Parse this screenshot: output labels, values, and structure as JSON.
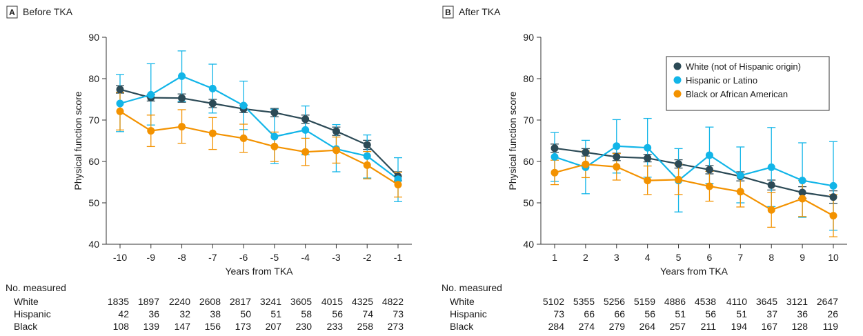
{
  "colors": {
    "White": "#2c4a56",
    "Hispanic": "#12b5e8",
    "Black": "#f39200",
    "axis": "#333333"
  },
  "chart_data": [
    {
      "panel_letter": "A",
      "panel_title": "Before TKA",
      "type": "line",
      "xlabel": "Years from TKA",
      "ylabel": "Physical function score",
      "x": [
        -10,
        -9,
        -8,
        -7,
        -6,
        -5,
        -4,
        -3,
        -2,
        -1
      ],
      "x_tick_labels": [
        "-10",
        "-9",
        "-8",
        "-7",
        "-6",
        "-5",
        "-4",
        "-3",
        "-2",
        "-1"
      ],
      "ylim": [
        40,
        90
      ],
      "y_ticks": [
        40,
        50,
        60,
        70,
        80,
        90
      ],
      "series": [
        {
          "key": "White",
          "values": [
            77.4,
            75.4,
            75.3,
            74.0,
            72.7,
            71.8,
            70.2,
            67.3,
            64.0,
            56.4
          ],
          "lower": [
            76.5,
            74.6,
            74.3,
            73.0,
            71.8,
            70.8,
            69.2,
            66.3,
            62.9,
            55.3
          ],
          "upper": [
            78.3,
            76.2,
            76.3,
            75.0,
            73.6,
            72.8,
            71.2,
            68.3,
            65.1,
            57.5
          ]
        },
        {
          "key": "Hispanic",
          "values": [
            74.0,
            76.1,
            80.6,
            77.6,
            73.5,
            66.0,
            67.6,
            63.0,
            61.3,
            55.7
          ],
          "lower": [
            67.2,
            68.8,
            74.5,
            71.7,
            67.7,
            59.5,
            61.6,
            57.5,
            56.0,
            50.3
          ],
          "upper": [
            81.0,
            83.6,
            86.7,
            83.5,
            79.4,
            72.6,
            73.4,
            68.9,
            66.4,
            60.9
          ]
        },
        {
          "key": "Black",
          "values": [
            72.1,
            67.4,
            68.4,
            66.8,
            65.6,
            63.6,
            62.3,
            62.7,
            59.1,
            54.4
          ],
          "lower": [
            67.6,
            63.6,
            64.4,
            62.9,
            62.2,
            60.0,
            59.0,
            59.6,
            55.8,
            51.4
          ],
          "upper": [
            76.7,
            71.2,
            72.5,
            70.6,
            69.0,
            67.1,
            65.6,
            65.9,
            62.4,
            57.4
          ]
        }
      ],
      "measured_title": "No. measured",
      "measured": [
        {
          "key": "White",
          "label": "White",
          "values": [
            "1835",
            "1897",
            "2240",
            "2608",
            "2817",
            "3241",
            "3605",
            "4015",
            "4325",
            "4822"
          ]
        },
        {
          "key": "Hispanic",
          "label": "Hispanic",
          "values": [
            "42",
            "36",
            "32",
            "38",
            "50",
            "51",
            "58",
            "56",
            "74",
            "73"
          ]
        },
        {
          "key": "Black",
          "label": "Black",
          "values": [
            "108",
            "139",
            "147",
            "156",
            "173",
            "207",
            "230",
            "233",
            "258",
            "273"
          ]
        }
      ]
    },
    {
      "panel_letter": "B",
      "panel_title": "After TKA",
      "type": "line",
      "xlabel": "Years from TKA",
      "ylabel": "Physical function score",
      "x": [
        1,
        2,
        3,
        4,
        5,
        6,
        7,
        8,
        9,
        10
      ],
      "x_tick_labels": [
        "1",
        "2",
        "3",
        "4",
        "5",
        "6",
        "7",
        "8",
        "9",
        "10"
      ],
      "ylim": [
        40,
        90
      ],
      "y_ticks": [
        40,
        50,
        60,
        70,
        80,
        90
      ],
      "legend": {
        "placement": "top-right",
        "entries": [
          {
            "key": "White",
            "label": "White (not of Hispanic origin)"
          },
          {
            "key": "Hispanic",
            "label": "Hispanic or Latino"
          },
          {
            "key": "Black",
            "label": "Black or African American"
          }
        ]
      },
      "series": [
        {
          "key": "White",
          "values": [
            63.2,
            62.2,
            61.1,
            60.8,
            59.4,
            58.0,
            56.4,
            54.3,
            52.5,
            51.4
          ],
          "lower": [
            62.2,
            61.3,
            60.2,
            59.9,
            58.4,
            57.0,
            55.3,
            53.1,
            51.1,
            49.9
          ],
          "upper": [
            64.2,
            63.1,
            62.0,
            61.7,
            60.4,
            59.0,
            57.5,
            55.5,
            53.9,
            52.9
          ]
        },
        {
          "key": "Hispanic",
          "values": [
            61.1,
            58.6,
            63.7,
            63.3,
            55.4,
            61.5,
            56.6,
            58.6,
            55.4,
            54.1
          ],
          "lower": [
            55.2,
            52.2,
            57.2,
            56.2,
            47.8,
            54.7,
            50.0,
            49.1,
            46.5,
            43.4
          ],
          "upper": [
            67.0,
            65.1,
            70.1,
            70.4,
            63.1,
            68.3,
            63.5,
            68.2,
            64.5,
            64.8
          ]
        },
        {
          "key": "Black",
          "values": [
            57.3,
            59.3,
            58.7,
            55.4,
            55.6,
            54.0,
            52.7,
            48.3,
            51.0,
            46.9
          ],
          "lower": [
            54.4,
            56.1,
            55.5,
            52.0,
            52.0,
            50.4,
            49.0,
            44.1,
            46.7,
            41.8
          ],
          "upper": [
            60.3,
            62.5,
            61.9,
            58.9,
            59.3,
            57.6,
            56.5,
            52.5,
            55.4,
            52.0
          ]
        }
      ],
      "measured_title": "No. measured",
      "measured": [
        {
          "key": "White",
          "label": "White",
          "values": [
            "5102",
            "5355",
            "5256",
            "5159",
            "4886",
            "4538",
            "4110",
            "3645",
            "3121",
            "2647"
          ]
        },
        {
          "key": "Hispanic",
          "label": "Hispanic",
          "values": [
            "73",
            "66",
            "66",
            "56",
            "51",
            "56",
            "51",
            "37",
            "36",
            "26"
          ]
        },
        {
          "key": "Black",
          "label": "Black",
          "values": [
            "284",
            "274",
            "279",
            "264",
            "257",
            "211",
            "194",
            "167",
            "128",
            "119"
          ]
        }
      ]
    }
  ]
}
